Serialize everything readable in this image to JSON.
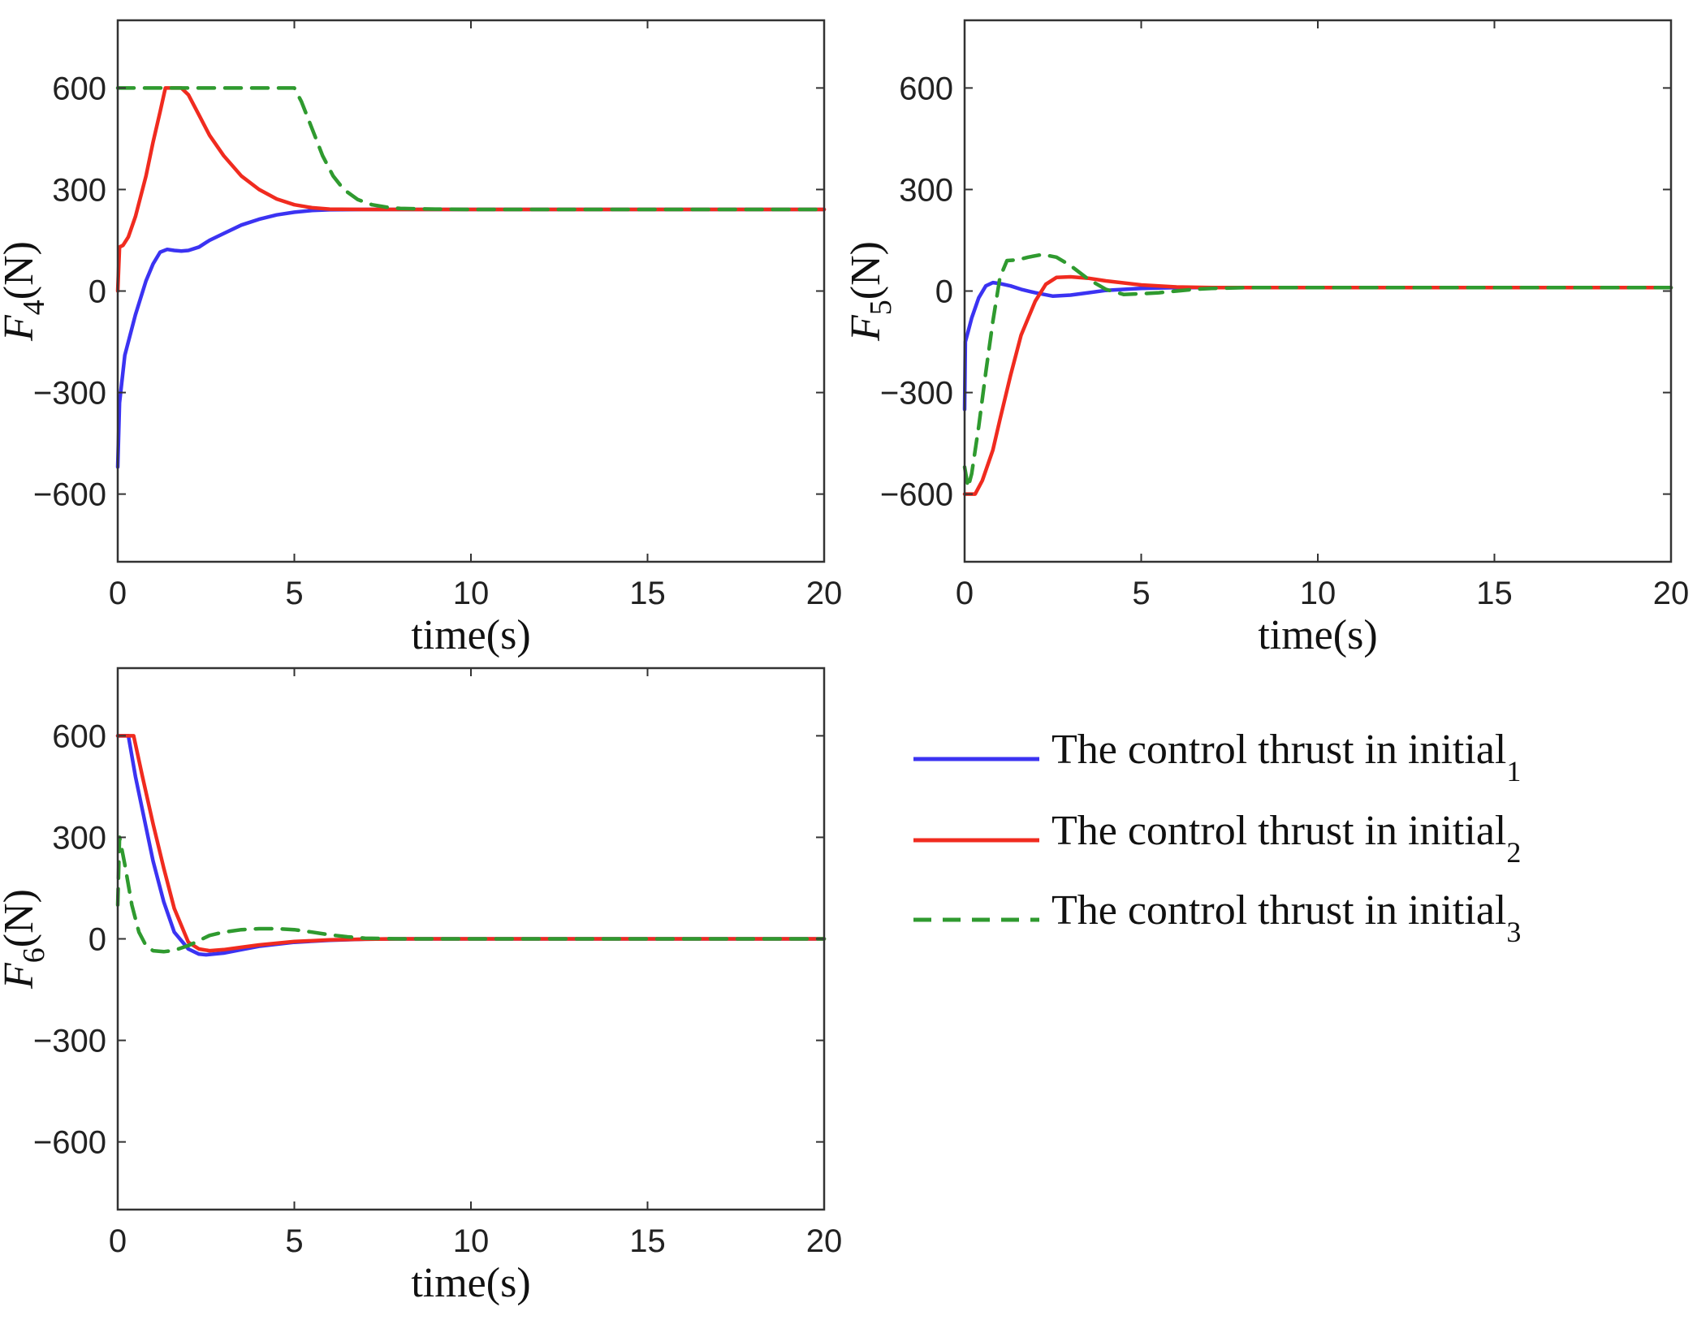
{
  "chart_data": [
    {
      "type": "line",
      "id": "F4",
      "ylabel": {
        "symbol": "F",
        "subscript": "4",
        "unit": "(N)"
      },
      "xlabel": "time(s)",
      "xlim": [
        0,
        20
      ],
      "ylim": [
        -800,
        800
      ],
      "xticks": [
        "0",
        "5",
        "10",
        "15",
        "20"
      ],
      "yticks": [
        "600",
        "300",
        "0",
        "−300",
        "−600"
      ],
      "ytick_values": [
        600,
        300,
        0,
        -300,
        -600
      ],
      "xtick_values": [
        0,
        5,
        10,
        15,
        20
      ],
      "series": [
        {
          "name": "The control thrust in initial_1",
          "x": [
            0,
            0.05,
            0.2,
            0.5,
            0.8,
            1.0,
            1.2,
            1.4,
            1.6,
            1.8,
            2.0,
            2.3,
            2.6,
            3.0,
            3.5,
            4.0,
            4.5,
            5.0,
            5.5,
            6.0,
            7.0,
            8.0,
            10.0,
            12.0,
            14.0,
            16.0,
            18.0,
            20.0
          ],
          "y": [
            -520,
            -330,
            -190,
            -70,
            30,
            80,
            115,
            123,
            120,
            118,
            120,
            130,
            150,
            170,
            195,
            212,
            225,
            233,
            238,
            240,
            241,
            241,
            241,
            241,
            241,
            241,
            241,
            241
          ]
        },
        {
          "name": "The control thrust in initial_2",
          "x": [
            0,
            0.05,
            0.15,
            0.3,
            0.5,
            0.8,
            1.0,
            1.2,
            1.35,
            1.5,
            1.8,
            2.0,
            2.3,
            2.6,
            3.0,
            3.5,
            4.0,
            4.5,
            5.0,
            5.5,
            6.0,
            7.0,
            8.0,
            10.0,
            12.0,
            14.0,
            16.0,
            18.0,
            20.0
          ],
          "y": [
            0,
            130,
            135,
            160,
            220,
            340,
            440,
            530,
            600,
            600,
            600,
            580,
            520,
            460,
            400,
            340,
            300,
            272,
            255,
            246,
            242,
            241,
            241,
            241,
            241,
            241,
            241,
            241,
            241
          ]
        },
        {
          "name": "The control thrust in initial_3",
          "x": [
            0,
            1,
            2,
            3,
            4,
            5.0,
            5.2,
            5.5,
            5.8,
            6.1,
            6.4,
            6.8,
            7.2,
            7.6,
            8.0,
            9.0,
            10.0,
            12.0,
            14.0,
            16.0,
            18.0,
            20.0
          ],
          "y": [
            600,
            600,
            600,
            600,
            600,
            600,
            560,
            480,
            400,
            340,
            300,
            270,
            255,
            248,
            244,
            242,
            241,
            241,
            241,
            241,
            241,
            241
          ]
        }
      ]
    },
    {
      "type": "line",
      "id": "F5",
      "ylabel": {
        "symbol": "F",
        "subscript": "5",
        "unit": "(N)"
      },
      "xlabel": "time(s)",
      "xlim": [
        0,
        20
      ],
      "ylim": [
        -800,
        800
      ],
      "xticks": [
        "0",
        "5",
        "10",
        "15",
        "20"
      ],
      "yticks": [
        "600",
        "300",
        "0",
        "−300",
        "−600"
      ],
      "ytick_values": [
        600,
        300,
        0,
        -300,
        -600
      ],
      "xtick_values": [
        0,
        5,
        10,
        15,
        20
      ],
      "series": [
        {
          "name": "The control thrust in initial_1",
          "x": [
            0,
            0.02,
            0.1,
            0.2,
            0.4,
            0.6,
            0.8,
            1.0,
            1.3,
            1.6,
            2.0,
            2.5,
            3.0,
            3.5,
            4.0,
            5.0,
            6.0,
            7.0,
            8.0,
            10.0,
            12.0,
            14.0,
            16.0,
            18.0,
            20.0
          ],
          "y": [
            -350,
            -150,
            -120,
            -80,
            -20,
            15,
            25,
            22,
            15,
            5,
            -5,
            -15,
            -12,
            -5,
            2,
            8,
            10,
            10,
            10,
            10,
            10,
            10,
            10,
            10,
            10
          ]
        },
        {
          "name": "The control thrust in initial_2",
          "x": [
            0,
            0.1,
            0.3,
            0.5,
            0.8,
            1.0,
            1.3,
            1.6,
            2.0,
            2.3,
            2.6,
            3.0,
            3.5,
            4.0,
            5.0,
            6.0,
            7.0,
            8.0,
            10.0,
            12.0,
            14.0,
            16.0,
            18.0,
            20.0
          ],
          "y": [
            -600,
            -600,
            -600,
            -560,
            -470,
            -380,
            -250,
            -130,
            -30,
            20,
            40,
            42,
            38,
            30,
            18,
            12,
            10,
            10,
            10,
            10,
            10,
            10,
            10,
            10
          ]
        },
        {
          "name": "The control thrust in initial_3",
          "x": [
            0,
            0.1,
            0.2,
            0.4,
            0.6,
            0.8,
            1.0,
            1.2,
            1.5,
            1.8,
            2.2,
            2.6,
            3.0,
            3.5,
            4.0,
            4.5,
            5.0,
            5.5,
            6.0,
            6.5,
            7.0,
            8.0,
            10.0,
            12.0,
            14.0,
            16.0,
            18.0,
            20.0
          ],
          "y": [
            -520,
            -580,
            -540,
            -400,
            -240,
            -90,
            40,
            90,
            92,
            100,
            108,
            100,
            75,
            35,
            5,
            -10,
            -8,
            -5,
            0,
            5,
            8,
            10,
            10,
            10,
            10,
            10,
            10,
            10
          ]
        }
      ]
    },
    {
      "type": "line",
      "id": "F6",
      "ylabel": {
        "symbol": "F",
        "subscript": "6",
        "unit": "(N)"
      },
      "xlabel": "time(s)",
      "xlim": [
        0,
        20
      ],
      "ylim": [
        -800,
        800
      ],
      "xticks": [
        "0",
        "5",
        "10",
        "15",
        "20"
      ],
      "yticks": [
        "600",
        "300",
        "0",
        "−300",
        "−600"
      ],
      "ytick_values": [
        600,
        300,
        0,
        -300,
        -600
      ],
      "xtick_values": [
        0,
        5,
        10,
        15,
        20
      ],
      "series": [
        {
          "name": "The control thrust in initial_1",
          "x": [
            0,
            0.2,
            0.3,
            0.5,
            0.8,
            1.0,
            1.3,
            1.6,
            2.0,
            2.3,
            2.5,
            3.0,
            3.5,
            4.0,
            5.0,
            6.0,
            7.0,
            8.0,
            10.0,
            12.0,
            14.0,
            16.0,
            18.0,
            20.0
          ],
          "y": [
            600,
            600,
            600,
            480,
            330,
            230,
            110,
            20,
            -30,
            -45,
            -47,
            -42,
            -32,
            -22,
            -10,
            -4,
            -1,
            0,
            0,
            0,
            0,
            0,
            0,
            0
          ]
        },
        {
          "name": "The control thrust in initial_2",
          "x": [
            0,
            0.3,
            0.45,
            0.7,
            1.0,
            1.3,
            1.6,
            2.0,
            2.3,
            2.6,
            3.0,
            3.5,
            4.0,
            5.0,
            6.0,
            7.0,
            8.0,
            10.0,
            12.0,
            14.0,
            16.0,
            18.0,
            20.0
          ],
          "y": [
            600,
            600,
            600,
            480,
            340,
            210,
            90,
            -10,
            -30,
            -35,
            -32,
            -25,
            -18,
            -8,
            -3,
            -1,
            0,
            0,
            0,
            0,
            0,
            0,
            0
          ]
        },
        {
          "name": "The control thrust in initial_3",
          "x": [
            0,
            0.05,
            0.2,
            0.4,
            0.6,
            0.8,
            1.0,
            1.3,
            1.6,
            2.0,
            2.3,
            2.6,
            3.0,
            3.5,
            4.0,
            4.5,
            5.0,
            5.5,
            6.0,
            6.5,
            7.0,
            8.0,
            10.0,
            12.0,
            14.0,
            16.0,
            18.0,
            20.0
          ],
          "y": [
            100,
            300,
            220,
            100,
            20,
            -20,
            -35,
            -38,
            -34,
            -20,
            -5,
            10,
            20,
            27,
            30,
            30,
            27,
            20,
            12,
            6,
            2,
            0,
            0,
            0,
            0,
            0,
            0,
            0
          ]
        }
      ]
    }
  ],
  "legend": {
    "placement": "bottom-right",
    "items": [
      {
        "text": "The control thrust in initial",
        "sub": "1",
        "color": "#3b33f2",
        "dash": "solid"
      },
      {
        "text": "The control thrust in initial",
        "sub": "2",
        "color": "#f02b1f",
        "dash": "solid"
      },
      {
        "text": "The control thrust in initial",
        "sub": "3",
        "color": "#2f9a2f",
        "dash": "dashed"
      }
    ]
  },
  "colors": {
    "series_1": "#3b33f2",
    "series_2": "#f02b1f",
    "series_3": "#2f9a2f",
    "axis": "#333333"
  }
}
